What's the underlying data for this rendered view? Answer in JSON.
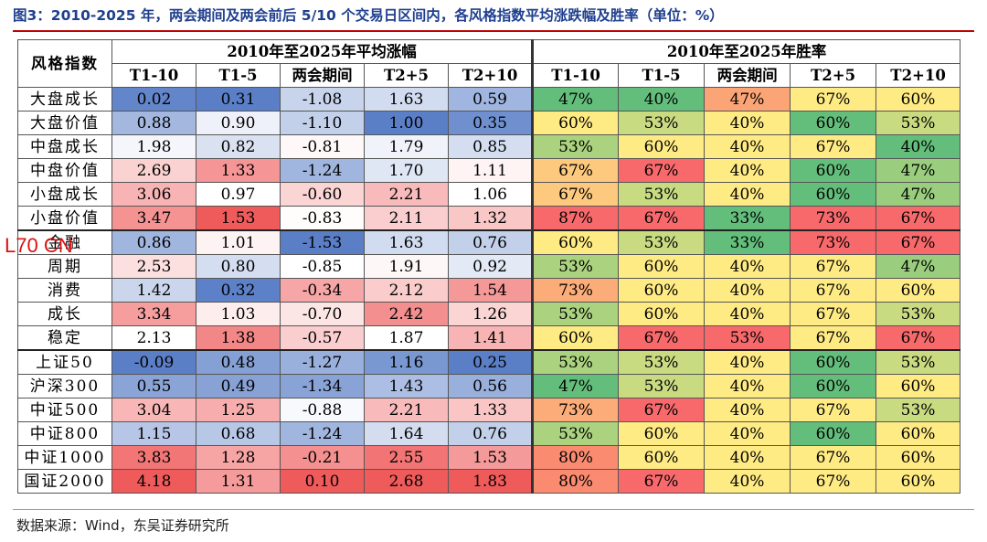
{
  "title": "图3：2010-2025 年，两会期间及两会前后 5/10 个交易日区间内，各风格指数平均涨跌幅及胜率（单位：%）",
  "footer": "数据来源：Wind，东吴证券研究所",
  "watermark": "L70 CN",
  "colors": {
    "title": "#1f3f8f",
    "accent_rule": "#c00000"
  },
  "chart_data": {
    "type": "table",
    "corner_label": "风格指数",
    "groups": [
      {
        "label": "2010年至2025年平均涨幅",
        "columns": [
          "T1-10",
          "T1-5",
          "两会期间",
          "T2+5",
          "T2+10"
        ]
      },
      {
        "label": "2010年至2025年胜率",
        "columns": [
          "T1-10",
          "T1-5",
          "两会期间",
          "T2+5",
          "T2+10"
        ]
      }
    ],
    "rows": [
      {
        "name": "大盘成长",
        "returns": [
          "0.02",
          "0.31",
          "-1.08",
          "1.63",
          "0.59"
        ],
        "win": [
          "47%",
          "40%",
          "47%",
          "67%",
          "60%"
        ]
      },
      {
        "name": "大盘价值",
        "returns": [
          "0.88",
          "0.90",
          "-1.10",
          "1.00",
          "0.35"
        ],
        "win": [
          "60%",
          "53%",
          "40%",
          "60%",
          "53%"
        ]
      },
      {
        "name": "中盘成长",
        "returns": [
          "1.98",
          "0.82",
          "-0.81",
          "1.79",
          "0.85"
        ],
        "win": [
          "53%",
          "60%",
          "40%",
          "67%",
          "40%"
        ]
      },
      {
        "name": "中盘价值",
        "returns": [
          "2.69",
          "1.33",
          "-1.24",
          "1.70",
          "1.11"
        ],
        "win": [
          "67%",
          "67%",
          "40%",
          "60%",
          "47%"
        ]
      },
      {
        "name": "小盘成长",
        "returns": [
          "3.06",
          "0.97",
          "-0.60",
          "2.21",
          "1.06"
        ],
        "win": [
          "67%",
          "53%",
          "40%",
          "60%",
          "47%"
        ]
      },
      {
        "name": "小盘价值",
        "returns": [
          "3.47",
          "1.53",
          "-0.83",
          "2.11",
          "1.32"
        ],
        "win": [
          "87%",
          "67%",
          "33%",
          "73%",
          "67%"
        ]
      },
      {
        "name": "金融",
        "returns": [
          "0.86",
          "1.01",
          "-1.53",
          "1.63",
          "0.76"
        ],
        "win": [
          "60%",
          "53%",
          "33%",
          "73%",
          "67%"
        ],
        "block_start": true
      },
      {
        "name": "周期",
        "returns": [
          "2.53",
          "0.80",
          "-0.85",
          "1.91",
          "0.92"
        ],
        "win": [
          "53%",
          "60%",
          "40%",
          "67%",
          "47%"
        ]
      },
      {
        "name": "消费",
        "returns": [
          "1.42",
          "0.32",
          "-0.34",
          "2.12",
          "1.54"
        ],
        "win": [
          "73%",
          "60%",
          "40%",
          "67%",
          "60%"
        ]
      },
      {
        "name": "成长",
        "returns": [
          "3.34",
          "1.03",
          "-0.70",
          "2.42",
          "1.26"
        ],
        "win": [
          "53%",
          "60%",
          "40%",
          "67%",
          "53%"
        ]
      },
      {
        "name": "稳定",
        "returns": [
          "2.13",
          "1.38",
          "-0.57",
          "1.87",
          "1.41"
        ],
        "win": [
          "60%",
          "67%",
          "53%",
          "67%",
          "67%"
        ]
      },
      {
        "name": "上证50",
        "returns": [
          "-0.09",
          "0.48",
          "-1.27",
          "1.16",
          "0.25"
        ],
        "win": [
          "53%",
          "53%",
          "40%",
          "60%",
          "53%"
        ],
        "block_start": true
      },
      {
        "name": "沪深300",
        "returns": [
          "0.55",
          "0.49",
          "-1.34",
          "1.43",
          "0.56"
        ],
        "win": [
          "47%",
          "53%",
          "40%",
          "60%",
          "60%"
        ]
      },
      {
        "name": "中证500",
        "returns": [
          "3.04",
          "1.25",
          "-0.88",
          "2.21",
          "1.33"
        ],
        "win": [
          "73%",
          "67%",
          "40%",
          "67%",
          "53%"
        ]
      },
      {
        "name": "中证800",
        "returns": [
          "1.15",
          "0.68",
          "-1.24",
          "1.64",
          "0.76"
        ],
        "win": [
          "53%",
          "60%",
          "40%",
          "60%",
          "60%"
        ]
      },
      {
        "name": "中证1000",
        "returns": [
          "3.83",
          "1.28",
          "-0.21",
          "2.55",
          "1.53"
        ],
        "win": [
          "80%",
          "60%",
          "40%",
          "67%",
          "60%"
        ]
      },
      {
        "name": "国证2000",
        "returns": [
          "4.18",
          "1.31",
          "0.10",
          "2.68",
          "1.83"
        ],
        "win": [
          "80%",
          "67%",
          "40%",
          "67%",
          "60%"
        ]
      }
    ],
    "returns_colorscale": {
      "low": "#5b7fc7",
      "mid": "#ffffff",
      "high": "#ef5a5a",
      "scope": "per column"
    },
    "winrate_colorscale": {
      "low": "#63be7b",
      "mid": "#ffeb84",
      "high": "#f8696b",
      "scope": "per column"
    }
  }
}
